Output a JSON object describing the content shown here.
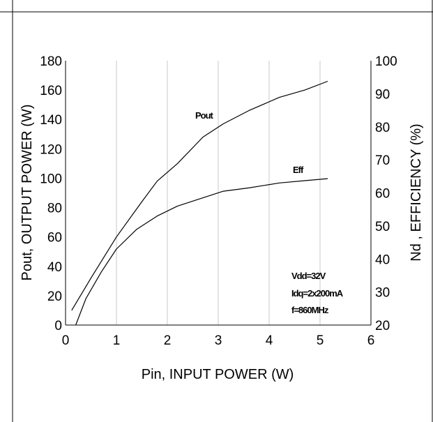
{
  "chart_data": {
    "type": "line",
    "title": "",
    "xlabel": "Pin, INPUT POWER (W)",
    "ylabel": "Pout, OUTPUT POWER (W)",
    "y2label": "Nd , EFFICIENCY (%)",
    "xlim": [
      0,
      6
    ],
    "ylim": [
      0,
      180
    ],
    "y2lim": [
      20,
      100
    ],
    "xticks": [
      "0",
      "1",
      "2",
      "3",
      "4",
      "5",
      "6"
    ],
    "yticks": [
      "0",
      "20",
      "40",
      "60",
      "80",
      "100",
      "120",
      "140",
      "160",
      "180"
    ],
    "y2ticks": [
      "20",
      "30",
      "40",
      "50",
      "60",
      "70",
      "80",
      "90",
      "100"
    ],
    "grid": {
      "vertical": true,
      "horizontal": false
    },
    "series": [
      {
        "name": "Pout",
        "axis": "left",
        "x": [
          0.12,
          0.5,
          1.0,
          1.5,
          1.8,
          2.2,
          2.7,
          3.1,
          3.6,
          4.2,
          4.7,
          5.15
        ],
        "values": [
          10,
          32,
          60,
          84,
          98,
          110,
          128,
          137,
          146,
          155,
          160,
          166
        ]
      },
      {
        "name": "Eff",
        "axis": "right",
        "x": [
          0.2,
          0.4,
          0.7,
          1.0,
          1.4,
          1.8,
          2.2,
          2.7,
          3.1,
          3.6,
          4.2,
          4.7,
          5.15
        ],
        "values": [
          20,
          28,
          36,
          43,
          49,
          53,
          56,
          58.5,
          60.5,
          61.5,
          63,
          63.7,
          64.3
        ]
      }
    ],
    "annotations": [
      "Vdd=32V",
      "Idq=2x200mA",
      "f=860MHz"
    ]
  }
}
